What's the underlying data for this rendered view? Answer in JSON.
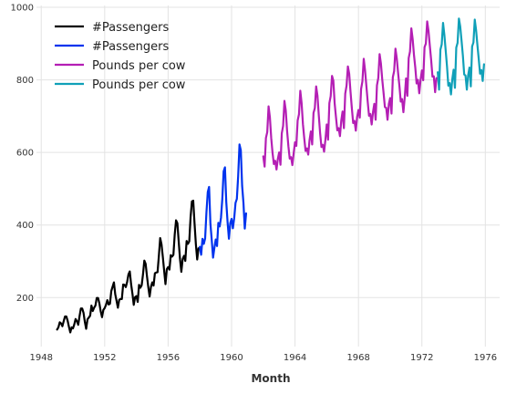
{
  "chart_data": {
    "type": "line",
    "title": "",
    "xlabel": "Month",
    "ylabel": "",
    "xlim": [
      1947.7,
      1976.9
    ],
    "ylim": [
      65,
      1005
    ],
    "x_ticks": [
      1948,
      1952,
      1956,
      1960,
      1964,
      1968,
      1972,
      1976
    ],
    "y_ticks": [
      200,
      400,
      600,
      800,
      1000
    ],
    "grid": true,
    "legend_position": "top-left",
    "series": [
      {
        "name": "#Passengers",
        "color": "#000000",
        "x_start": 1949.0,
        "step": 0.0833333,
        "values": [
          112,
          118,
          132,
          129,
          121,
          135,
          148,
          148,
          136,
          119,
          104,
          118,
          115,
          126,
          141,
          135,
          125,
          149,
          170,
          170,
          158,
          133,
          114,
          140,
          145,
          150,
          178,
          163,
          172,
          178,
          199,
          199,
          184,
          162,
          146,
          166,
          171,
          180,
          193,
          181,
          183,
          218,
          230,
          242,
          209,
          191,
          172,
          194,
          196,
          196,
          236,
          235,
          229,
          243,
          264,
          272,
          237,
          211,
          180,
          201,
          204,
          188,
          235,
          227,
          234,
          264,
          302,
          293,
          259,
          229,
          203,
          229,
          242,
          233,
          267,
          269,
          270,
          315,
          364,
          347,
          312,
          274,
          237,
          278,
          284,
          277,
          317,
          313,
          318,
          374,
          413,
          405,
          355,
          306,
          271,
          306,
          315,
          301,
          356,
          348,
          355,
          422,
          465,
          467,
          404,
          347,
          305,
          336
        ]
      },
      {
        "name": "#Passengers",
        "color": "#0033ee",
        "x_start": 1958.0,
        "step": 0.0833333,
        "values": [
          340,
          318,
          362,
          348,
          363,
          435,
          491,
          505,
          404,
          359,
          310,
          337,
          360,
          342,
          406,
          396,
          420,
          472,
          548,
          559,
          463,
          407,
          362,
          405,
          417,
          391,
          419,
          461,
          472,
          535,
          622,
          606,
          508,
          461,
          390,
          432
        ]
      },
      {
        "name": "Pounds per cow",
        "color": "#b41fb4",
        "x_start": 1962.0,
        "step": 0.0833333,
        "values": [
          589,
          561,
          640,
          656,
          727,
          697,
          640,
          599,
          568,
          577,
          553,
          582,
          600,
          566,
          653,
          673,
          742,
          716,
          660,
          617,
          583,
          587,
          565,
          598,
          628,
          618,
          688,
          705,
          770,
          736,
          678,
          639,
          604,
          611,
          594,
          634,
          658,
          622,
          709,
          722,
          782,
          756,
          702,
          653,
          615,
          621,
          602,
          635,
          677,
          635,
          736,
          755,
          811,
          798,
          735,
          697,
          661,
          667,
          645,
          688,
          713,
          667,
          762,
          784,
          837,
          817,
          767,
          722,
          681,
          687,
          660,
          698,
          717,
          696,
          775,
          796,
          858,
          826,
          783,
          740,
          701,
          706,
          677,
          711,
          734,
          690,
          785,
          805,
          871,
          845,
          801,
          764,
          725,
          723,
          690,
          734,
          750,
          707,
          807,
          824,
          886,
          859,
          819,
          783,
          740,
          747,
          711,
          751,
          804,
          756,
          860,
          878,
          942,
          913,
          869,
          834,
          790,
          800,
          763,
          800,
          826,
          799,
          890,
          900,
          961,
          935,
          894,
          855,
          809,
          810,
          766,
          805
        ]
      },
      {
        "name": "Pounds per cow",
        "color": "#10a0b8",
        "x_start": 1973.0,
        "step": 0.0833333,
        "values": [
          821,
          773,
          883,
          898,
          957,
          924,
          881,
          837,
          784,
          791,
          760,
          802,
          828,
          778,
          889,
          902,
          969,
          947,
          908,
          867,
          815,
          812,
          773,
          813,
          834,
          782,
          892,
          903,
          966,
          937,
          896,
          858,
          817,
          827,
          797,
          843
        ]
      }
    ]
  }
}
